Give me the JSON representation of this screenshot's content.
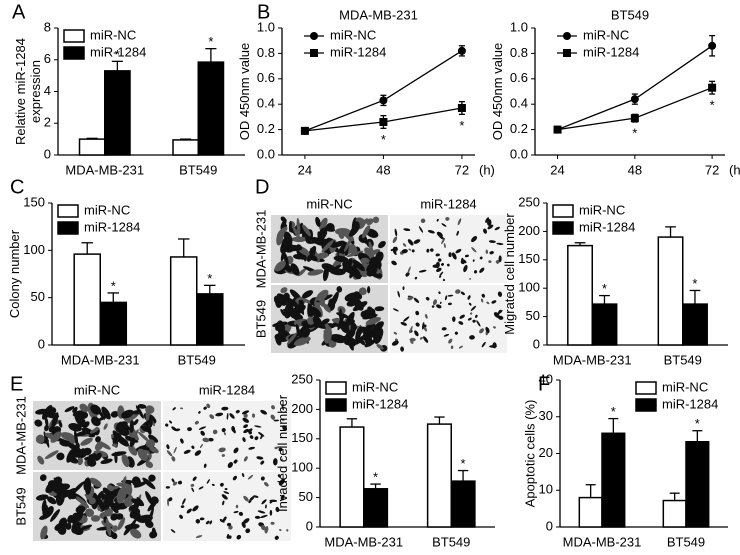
{
  "figure": {
    "panel_labels": [
      "A",
      "B",
      "C",
      "D",
      "E",
      "F"
    ],
    "micrographs": [
      {
        "columns": [
          "miR-NC",
          "miR-1284"
        ],
        "rows": [
          "MDA-MB-231",
          "BT549"
        ]
      },
      {
        "columns": [
          "miR-NC",
          "miR-1284"
        ],
        "rows": [
          "MDA-MB-231",
          "BT549"
        ]
      }
    ]
  },
  "chart_data": [
    {
      "type": "bar",
      "ylabel": [
        "Relative miR-1284",
        "expression"
      ],
      "categories": [
        "MDA-MB-231",
        "BT549"
      ],
      "series": [
        {
          "name": "miR-NC",
          "color": "#ffffff",
          "values": [
            1.0,
            0.95
          ],
          "errors": [
            0.05,
            0.05
          ]
        },
        {
          "name": "miR-1284",
          "color": "#000000",
          "values": [
            5.3,
            5.85
          ],
          "errors": [
            0.6,
            0.85
          ],
          "significance": [
            "*",
            "*"
          ]
        }
      ],
      "ylim": [
        0,
        8
      ],
      "yticks": [
        0,
        2,
        4,
        6,
        8
      ],
      "legend": "upper left"
    },
    {
      "type": "line",
      "title": "MDA-MB-231",
      "ylabel": [
        "OD 450nm value"
      ],
      "xlabel": "(h)",
      "x": [
        24,
        48,
        72
      ],
      "series": [
        {
          "name": "miR-NC",
          "color": "#000000",
          "marker": "circle",
          "values": [
            0.19,
            0.43,
            0.82
          ],
          "errors": [
            0.02,
            0.04,
            0.04
          ]
        },
        {
          "name": "miR-1284",
          "color": "#000000",
          "marker": "square",
          "values": [
            0.19,
            0.26,
            0.37
          ],
          "errors": [
            0.02,
            0.05,
            0.05
          ],
          "significance": [
            null,
            "*",
            "*"
          ]
        }
      ],
      "xlim": [
        17,
        76
      ],
      "xticks": [
        24,
        48,
        72
      ],
      "ylim": [
        0,
        1
      ],
      "yticks": [
        {
          "value": 0,
          "label": "0.0"
        },
        0.2,
        0.4,
        0.6,
        0.8,
        {
          "value": 1,
          "label": "1.0"
        }
      ],
      "legend": "upper left"
    },
    {
      "type": "line",
      "title": "BT549",
      "ylabel": [
        "OD 450nm value"
      ],
      "xlabel": "(h)",
      "x": [
        24,
        48,
        72
      ],
      "series": [
        {
          "name": "miR-NC",
          "color": "#000000",
          "marker": "circle",
          "values": [
            0.2,
            0.44,
            0.86
          ],
          "errors": [
            0.02,
            0.04,
            0.08
          ]
        },
        {
          "name": "miR-1284",
          "color": "#000000",
          "marker": "square",
          "values": [
            0.2,
            0.29,
            0.53
          ],
          "errors": [
            0.02,
            0.03,
            0.05
          ],
          "significance": [
            null,
            "*",
            "*"
          ]
        }
      ],
      "xlim": [
        17,
        76
      ],
      "xticks": [
        24,
        48,
        72
      ],
      "ylim": [
        0,
        1
      ],
      "yticks": [
        {
          "value": 0,
          "label": "0.0"
        },
        0.2,
        0.4,
        0.6,
        0.8,
        {
          "value": 1,
          "label": "1.0"
        }
      ],
      "legend": "upper left"
    },
    {
      "type": "bar",
      "ylabel": [
        "Colony number"
      ],
      "categories": [
        "MDA-MB-231",
        "BT549"
      ],
      "series": [
        {
          "name": "miR-NC",
          "color": "#ffffff",
          "values": [
            96,
            93
          ],
          "errors": [
            12,
            19
          ]
        },
        {
          "name": "miR-1284",
          "color": "#000000",
          "values": [
            45,
            54
          ],
          "errors": [
            10,
            9
          ],
          "significance": [
            "*",
            "*"
          ]
        }
      ],
      "ylim": [
        0,
        150
      ],
      "yticks": [
        0,
        50,
        100,
        150
      ],
      "legend": "upper left"
    },
    {
      "type": "bar",
      "ylabel": [
        "Migrated cell number"
      ],
      "categories": [
        "MDA-MB-231",
        "BT549"
      ],
      "series": [
        {
          "name": "miR-NC",
          "color": "#ffffff",
          "values": [
            175,
            190
          ],
          "errors": [
            5,
            18
          ]
        },
        {
          "name": "miR-1284",
          "color": "#000000",
          "values": [
            72,
            72
          ],
          "errors": [
            15,
            24
          ],
          "significance": [
            "*",
            "*"
          ]
        }
      ],
      "ylim": [
        0,
        250
      ],
      "yticks": [
        0,
        50,
        100,
        150,
        200,
        250
      ],
      "legend": "upper left"
    },
    {
      "type": "bar",
      "ylabel": [
        "Invaded cell number"
      ],
      "categories": [
        "MDA-MB-231",
        "BT549"
      ],
      "series": [
        {
          "name": "miR-NC",
          "color": "#ffffff",
          "values": [
            170,
            175
          ],
          "errors": [
            14,
            12
          ]
        },
        {
          "name": "miR-1284",
          "color": "#000000",
          "values": [
            65,
            78
          ],
          "errors": [
            8,
            18
          ],
          "significance": [
            "*",
            "*"
          ]
        }
      ],
      "ylim": [
        0,
        250
      ],
      "yticks": [
        0,
        50,
        100,
        150,
        200,
        250
      ],
      "legend": "upper left"
    },
    {
      "type": "bar",
      "ylabel": [
        "Apoptotic cells (%)"
      ],
      "categories": [
        "MDA-MB-231",
        "BT549"
      ],
      "series": [
        {
          "name": "miR-NC",
          "color": "#ffffff",
          "values": [
            8,
            7.2
          ],
          "errors": [
            3.5,
            2
          ]
        },
        {
          "name": "miR-1284",
          "color": "#000000",
          "values": [
            25.5,
            23.2
          ],
          "errors": [
            4,
            3
          ],
          "significance": [
            "*",
            "*"
          ]
        }
      ],
      "ylim": [
        0,
        40
      ],
      "yticks": [
        0,
        10,
        20,
        30,
        40
      ],
      "legend": "upper right"
    }
  ]
}
